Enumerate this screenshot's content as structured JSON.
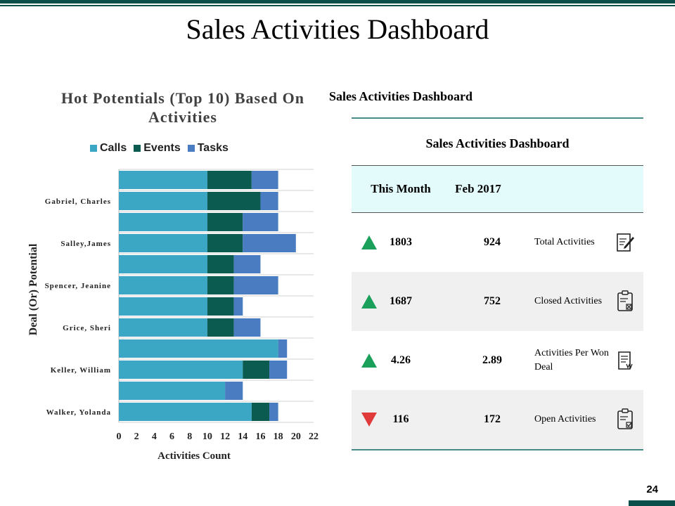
{
  "slide": {
    "title": "Sales Activities Dashboard",
    "page_number": "24"
  },
  "colors": {
    "accent": "#0b4f4a",
    "calls": "#3ba7c4",
    "events": "#0c5b50",
    "tasks": "#4a7cc2",
    "up": "#1aa05a",
    "down": "#e03a3a",
    "header_bg": "#e4fbfb"
  },
  "chart_data": {
    "type": "bar",
    "orientation": "horizontal",
    "stacked": true,
    "title": "Hot Potentials (Top 10) Based On Activities",
    "xlabel": "Activities Count",
    "ylabel": "Deal (Or) Potential",
    "xlim": [
      0,
      22
    ],
    "xticks": [
      0,
      2,
      4,
      6,
      8,
      10,
      12,
      14,
      16,
      18,
      20,
      22
    ],
    "legend": "top",
    "grid": "horizontal",
    "y_tick_labels": [
      "Gabriel, Charles",
      "Salley,James",
      "Spencer, Jeanine",
      "Grice, Sheri",
      "Keller, William",
      "Walker, Yolanda"
    ],
    "series": [
      {
        "name": "Calls",
        "values": [
          10,
          10,
          10,
          10,
          10,
          10,
          10,
          10,
          18,
          14,
          12,
          15
        ]
      },
      {
        "name": "Events",
        "values": [
          5,
          6,
          4,
          4,
          3,
          3,
          3,
          3,
          0,
          3,
          0,
          2
        ]
      },
      {
        "name": "Tasks",
        "values": [
          3,
          2,
          4,
          6,
          3,
          5,
          1,
          3,
          1,
          2,
          2,
          1
        ]
      }
    ]
  },
  "table": {
    "caption": "Sales Activities Dashboard",
    "title": "Sales Activities Dashboard",
    "headers": [
      "This Month",
      "Feb 2017"
    ],
    "rows": [
      {
        "current": "1803",
        "previous": "924",
        "label": "Total Activities",
        "trend": "up",
        "icon": "document-edit-icon"
      },
      {
        "current": "1687",
        "previous": "752",
        "label": "Closed Activities",
        "trend": "up",
        "icon": "clipboard-close-icon"
      },
      {
        "current": "4.26",
        "previous": "2.89",
        "label": "Activities Per Won Deal",
        "trend": "up",
        "icon": "document-win-icon"
      },
      {
        "current": "116",
        "previous": "172",
        "label": "Open Activities",
        "trend": "down",
        "icon": "clipboard-check-icon"
      }
    ]
  }
}
